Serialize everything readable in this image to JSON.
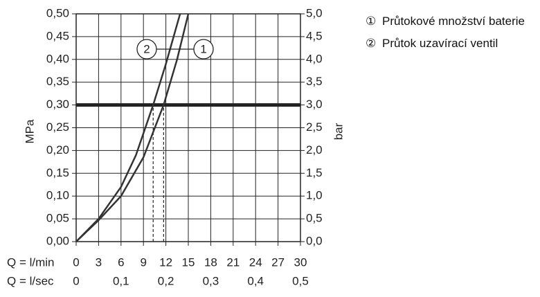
{
  "chart_data": {
    "type": "line",
    "y_label": "MPa",
    "y2_label": "bar",
    "x_label": "Q = l/min",
    "x2_label": "Q = l/sec",
    "xlim": [
      0,
      30
    ],
    "xticks": [
      0,
      3,
      6,
      9,
      12,
      15,
      18,
      21,
      24,
      27,
      30
    ],
    "x2lim": [
      0,
      0.5
    ],
    "x2ticks": [
      0,
      {
        "value": 0.1,
        "label": "0,1"
      },
      {
        "value": 0.2,
        "label": "0,2"
      },
      {
        "value": 0.3,
        "label": "0,3"
      },
      {
        "value": 0.4,
        "label": "0,4"
      },
      {
        "value": 0.5,
        "label": "0,5"
      }
    ],
    "ylim": [
      0,
      0.5
    ],
    "yticks": [
      {
        "value": 0,
        "label": "0,00"
      },
      {
        "value": 0.05,
        "label": "0,05"
      },
      {
        "value": 0.1,
        "label": "0,10"
      },
      {
        "value": 0.15,
        "label": "0,15"
      },
      {
        "value": 0.2,
        "label": "0,20"
      },
      {
        "value": 0.25,
        "label": "0,25"
      },
      {
        "value": 0.3,
        "label": "0,30"
      },
      {
        "value": 0.35,
        "label": "0,35"
      },
      {
        "value": 0.4,
        "label": "0,40"
      },
      {
        "value": 0.45,
        "label": "0,45"
      },
      {
        "value": 0.5,
        "label": "0,50"
      }
    ],
    "y2lim": [
      0,
      5
    ],
    "y2ticks": [
      {
        "value": 0,
        "label": "0,0"
      },
      {
        "value": 0.5,
        "label": "0,5"
      },
      {
        "value": 1,
        "label": "1,0"
      },
      {
        "value": 1.5,
        "label": "1,5"
      },
      {
        "value": 2,
        "label": "2,0"
      },
      {
        "value": 2.5,
        "label": "2,5"
      },
      {
        "value": 3,
        "label": "3,0"
      },
      {
        "value": 3.5,
        "label": "3,5"
      },
      {
        "value": 4,
        "label": "4,0"
      },
      {
        "value": 4.5,
        "label": "4,5"
      },
      {
        "value": 5,
        "label": "5,0"
      }
    ],
    "grid": true,
    "hline": 0.3,
    "crossings": [
      10.3,
      11.7
    ],
    "series": [
      {
        "name": "Průtokové množství baterie",
        "legend_marker": "①",
        "label": "1",
        "color": "#333333",
        "x": [
          0,
          3,
          6,
          9,
          11.7,
          13.5,
          15
        ],
        "values": [
          0,
          0.047,
          0.1,
          0.185,
          0.3,
          0.4,
          0.5
        ]
      },
      {
        "name": "Průtok uzavírací ventil",
        "legend_marker": "②",
        "label": "2",
        "color": "#333333",
        "x": [
          0,
          3,
          6,
          8,
          10.3,
          12,
          13.9
        ],
        "values": [
          0,
          0.05,
          0.12,
          0.19,
          0.3,
          0.39,
          0.5
        ]
      }
    ]
  }
}
